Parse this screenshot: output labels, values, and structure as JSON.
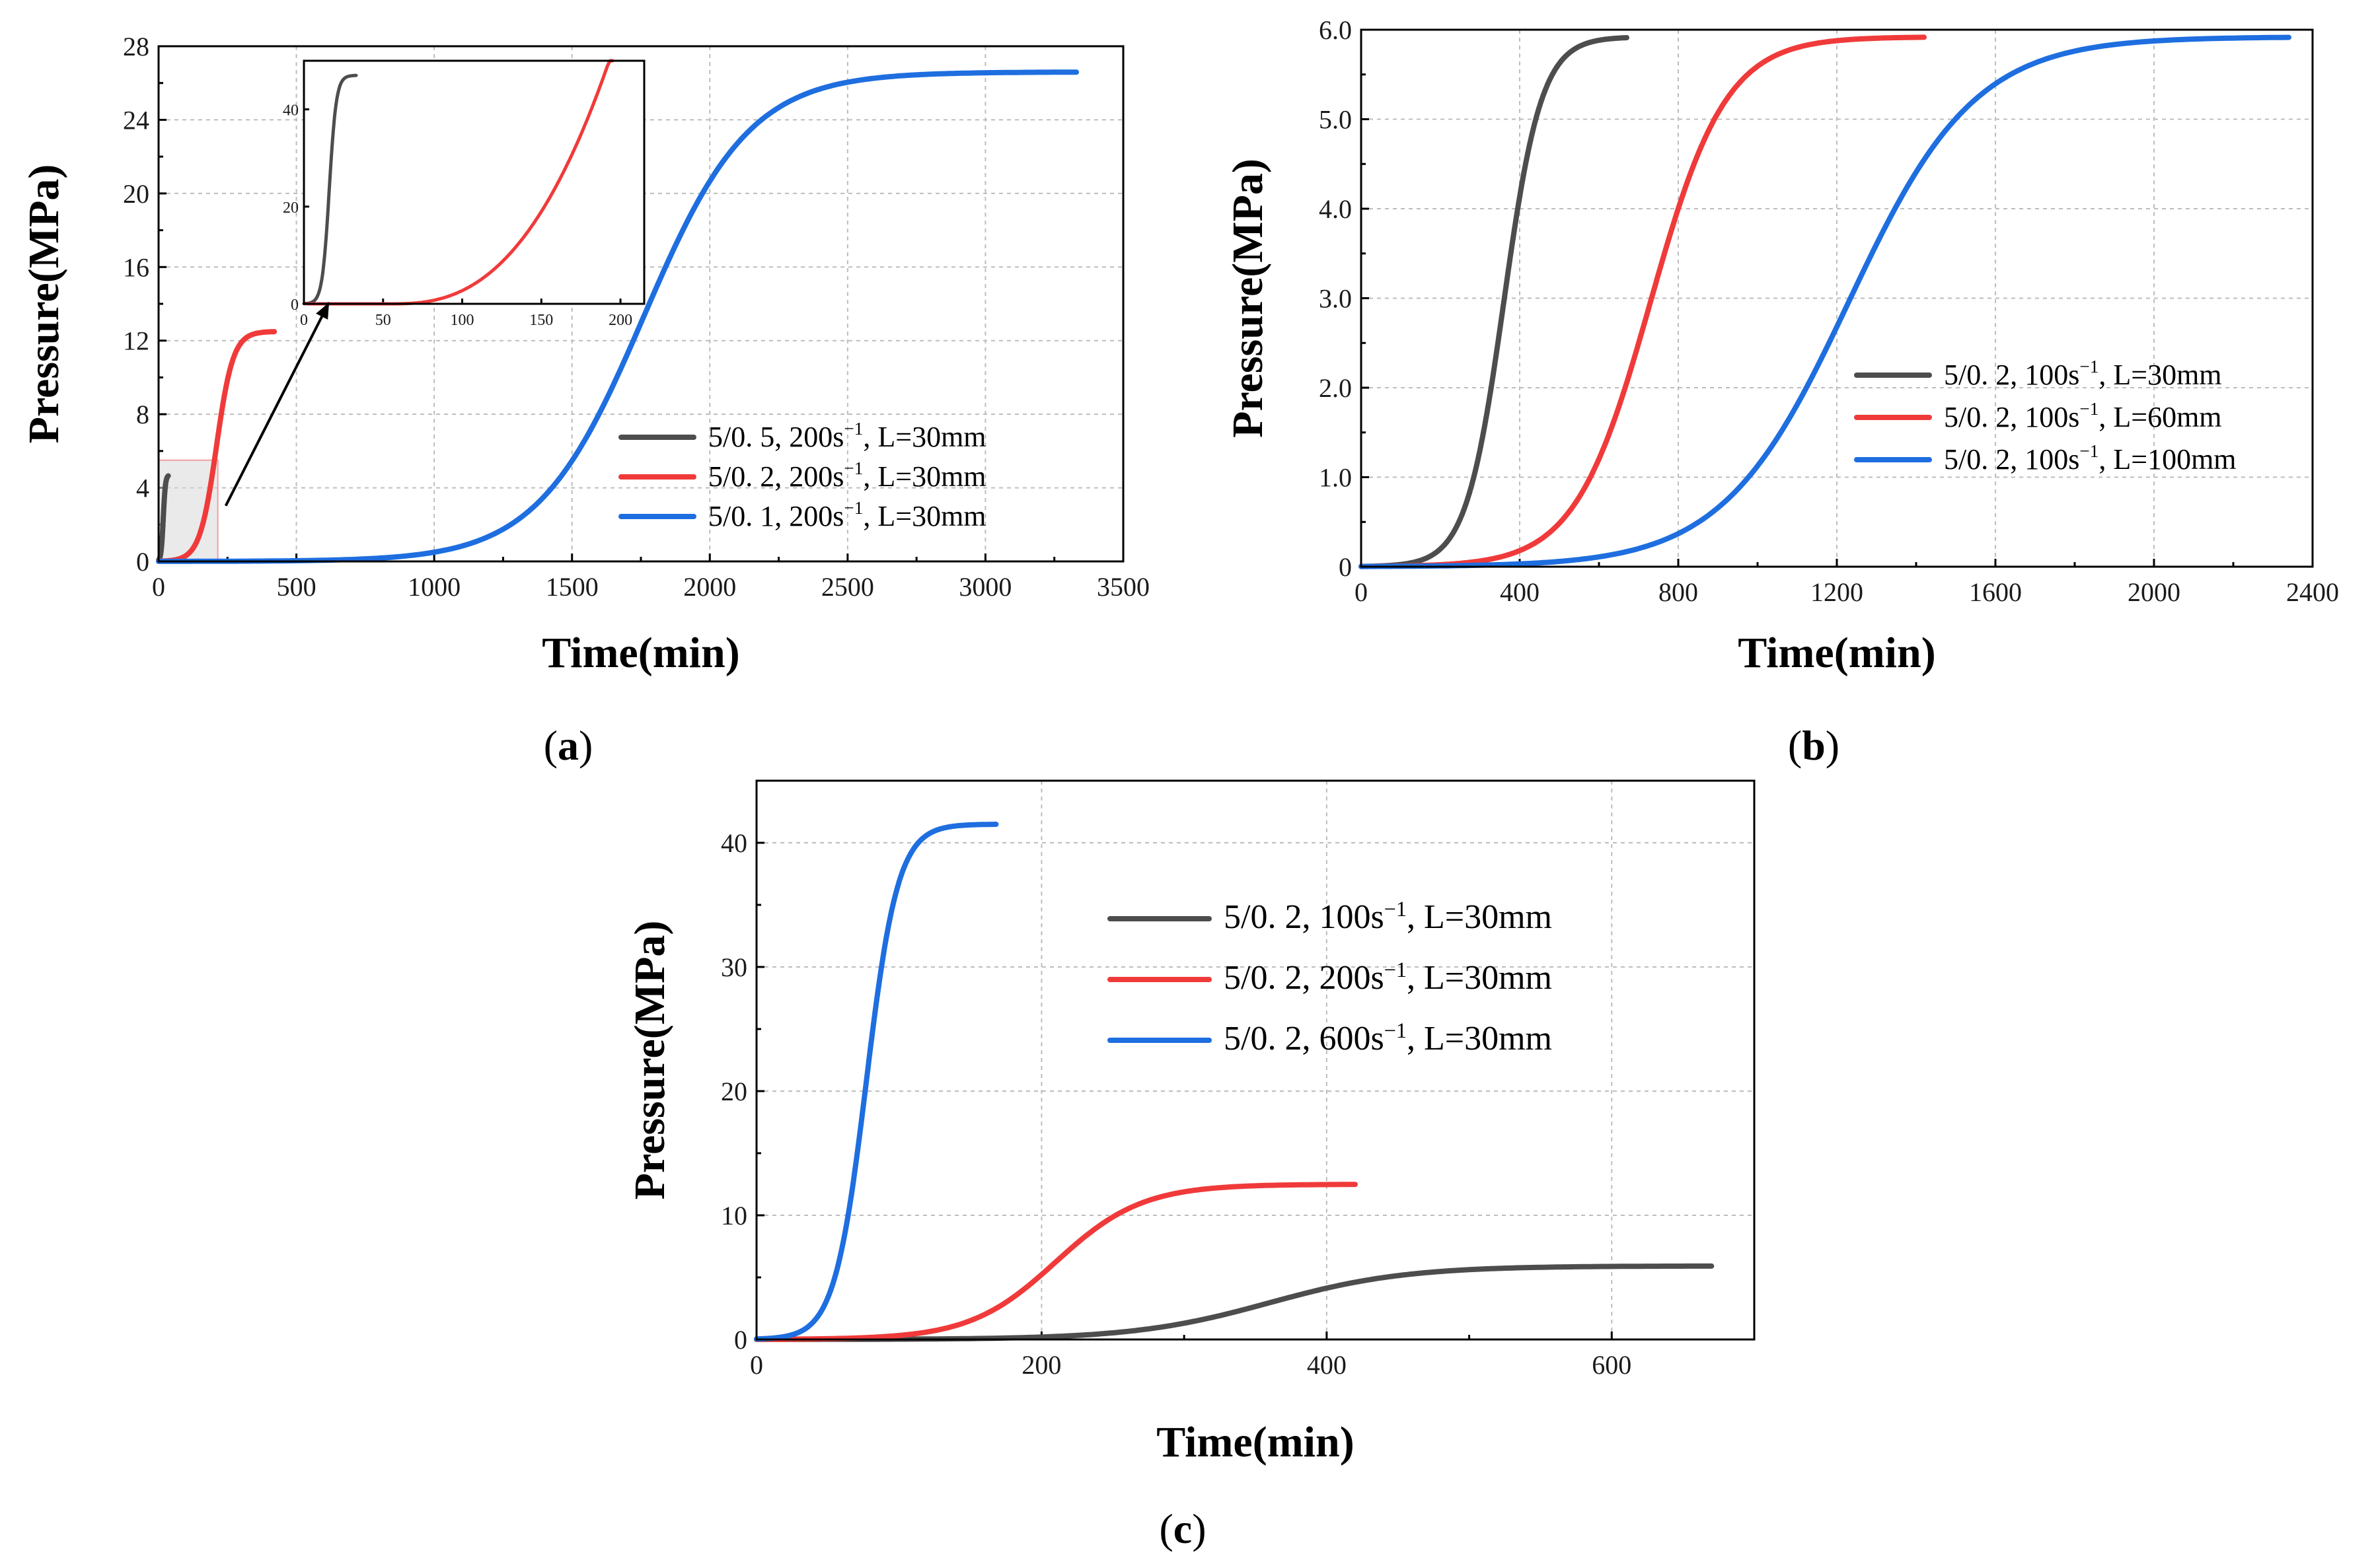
{
  "colors": {
    "gray": "#4d4d4d",
    "red": "#f03a3a",
    "blue": "#1e6ee0"
  },
  "chart_data": [
    {
      "id": "a",
      "type": "line",
      "caption_open": "(",
      "caption_letter": "a",
      "caption_close": ")",
      "xlabel": "Time(min)",
      "ylabel": "Pressure(MPa)",
      "xlim": [
        0,
        3500
      ],
      "ylim": [
        0,
        28
      ],
      "xticks": [
        "0",
        "500",
        "1000",
        "1500",
        "2000",
        "2500",
        "3000",
        "3500"
      ],
      "yticks": [
        "0",
        "4",
        "8",
        "12",
        "16",
        "20",
        "24",
        "28"
      ],
      "grid": true,
      "legend_position": "right",
      "series": [
        {
          "name": "5/0. 5, 200s",
          "sup": "−1",
          "suffix": ", L=30mm",
          "color": "gray",
          "model": {
            "max": 4.7,
            "t50": 17,
            "k": 0.25,
            "tend": 35
          }
        },
        {
          "name": "5/0. 2, 200s",
          "sup": "−1",
          "suffix": ", L=30mm",
          "color": "red",
          "model": {
            "max": 12.5,
            "t50": 210,
            "k": 0.033,
            "tend": 420
          }
        },
        {
          "name": "5/0. 1, 200s",
          "sup": "−1",
          "suffix": ", L=30mm",
          "color": "blue",
          "model": {
            "max": 26.6,
            "t50": 1760,
            "k": 0.0052,
            "tend": 3330
          }
        }
      ],
      "inset": {
        "xlim": [
          0,
          215
        ],
        "ylim": [
          0,
          50
        ],
        "xticks": [
          "0",
          "50",
          "100",
          "150",
          "200"
        ],
        "yticks": [
          "0",
          "20",
          "40"
        ],
        "note": "zoom of early time region"
      }
    },
    {
      "id": "b",
      "type": "line",
      "caption_open": "(",
      "caption_letter": "b",
      "caption_close": ")",
      "xlabel": "Time(min)",
      "ylabel": "Pressure(MPa)",
      "xlim": [
        0,
        2400
      ],
      "ylim": [
        0,
        6.0
      ],
      "xticks": [
        "0",
        "400",
        "800",
        "1200",
        "1600",
        "2000",
        "2400"
      ],
      "yticks": [
        "0",
        "1.0",
        "2.0",
        "3.0",
        "4.0",
        "5.0",
        "6.0"
      ],
      "grid": true,
      "legend_position": "right",
      "series": [
        {
          "name": "5/0. 2, 100s",
          "sup": "−1",
          "suffix": ", L=30mm",
          "color": "gray",
          "model": {
            "max": 5.92,
            "t50": 360,
            "k": 0.021,
            "tend": 670
          }
        },
        {
          "name": "5/0. 2, 100s",
          "sup": "−1",
          "suffix": ", L=60mm",
          "color": "red",
          "model": {
            "max": 5.92,
            "t50": 730,
            "k": 0.0105,
            "tend": 1420
          }
        },
        {
          "name": "5/0. 2, 100s",
          "sup": "−1",
          "suffix": ", L=100mm",
          "color": "blue",
          "model": {
            "max": 5.92,
            "t50": 1230,
            "k": 0.0063,
            "tend": 2340
          }
        }
      ]
    },
    {
      "id": "c",
      "type": "line",
      "caption_open": "(",
      "caption_letter": "c",
      "caption_close": ")",
      "xlabel": "Time(min)",
      "ylabel": "Pressure(MPa)",
      "xlim": [
        0,
        700
      ],
      "ylim": [
        0,
        45
      ],
      "xticks": [
        "0",
        "200",
        "400",
        "600"
      ],
      "yticks": [
        "0",
        "10",
        "20",
        "30",
        "40"
      ],
      "grid": true,
      "legend_position": "top-right",
      "series": [
        {
          "name": "5/0. 2, 100s",
          "sup": "−1",
          "suffix": ", L=30mm",
          "color": "gray",
          "model": {
            "max": 5.92,
            "t50": 360,
            "k": 0.021,
            "tend": 670
          }
        },
        {
          "name": "5/0. 2, 200s",
          "sup": "−1",
          "suffix": ", L=30mm",
          "color": "red",
          "model": {
            "max": 12.5,
            "t50": 210,
            "k": 0.033,
            "tend": 420
          }
        },
        {
          "name": "5/0. 2, 600s",
          "sup": "−1",
          "suffix": ", L=30mm",
          "color": "blue",
          "model": {
            "max": 41.5,
            "t50": 77,
            "k": 0.09,
            "tend": 168
          }
        }
      ]
    }
  ]
}
